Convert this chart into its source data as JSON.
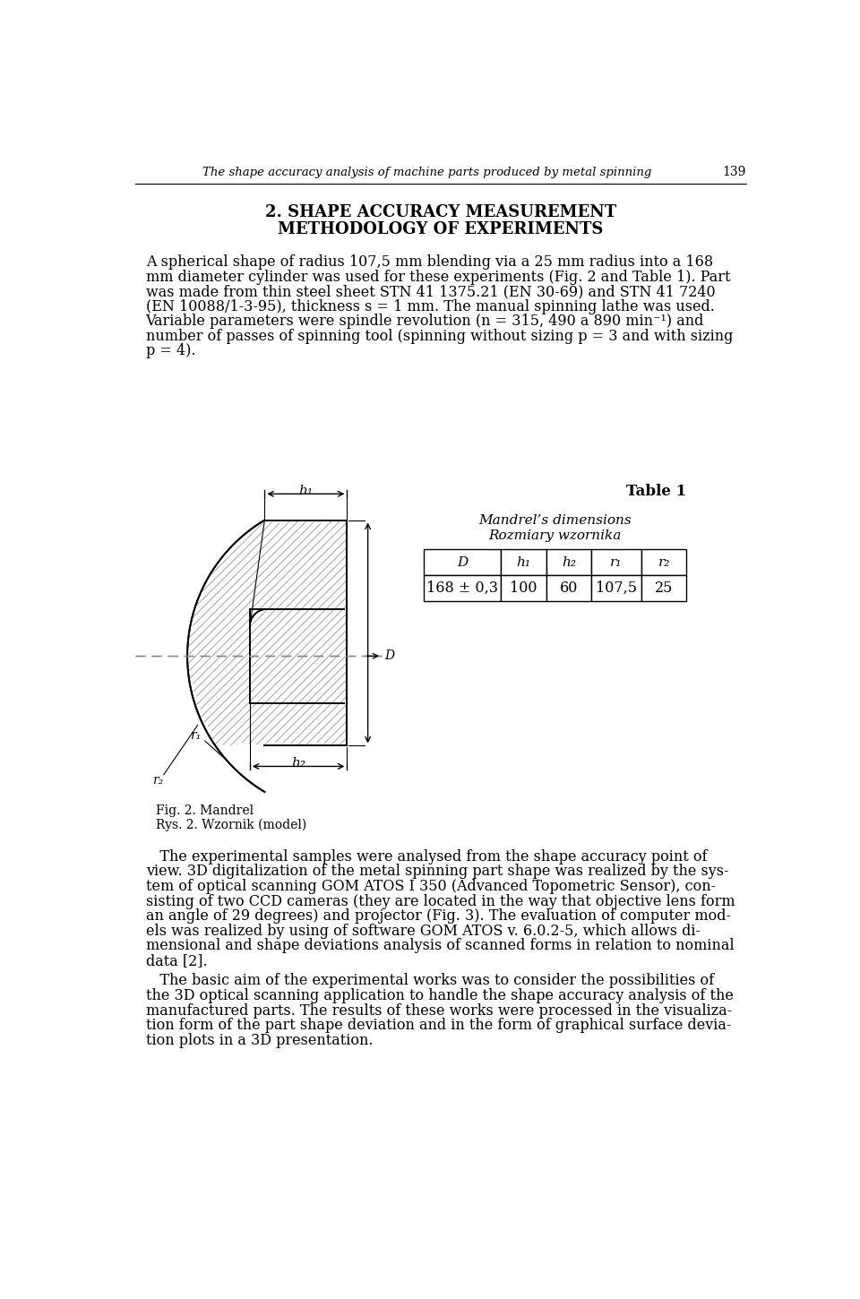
{
  "header_text": "The shape accuracy analysis of machine parts produced by metal spinning",
  "header_page": "139",
  "section_title_line1": "2. SHAPE ACCURACY MEASUREMENT",
  "section_title_line2": "METHODOLOGY OF EXPERIMENTS",
  "para1_lines": [
    "A spherical shape of radius 107,5 mm blending via a 25 mm radius into a 168",
    "mm diameter cylinder was used for these experiments (Fig. 2 and Table 1). Part",
    "was made from thin steel sheet STN 41 1375.21 (EN 30-69) and STN 41 7240",
    "(EN 10088/1-3-95), thickness s = 1 mm. The manual spinning lathe was used.",
    "Variable parameters were spindle revolution (n = 315, 490 a 890 min⁻¹) and",
    "number of passes of spinning tool (spinning without sizing p = 3 and with sizing",
    "p = 4)."
  ],
  "table_title1": "Mandrel’s dimensions",
  "table_title2": "Rozmiary wzornika",
  "table_label": "Table 1",
  "table_headers": [
    "D",
    "h₁",
    "h₂",
    "r₁",
    "r₂"
  ],
  "table_values": [
    "168 ± 0,3",
    "100",
    "60",
    "107,5",
    "25"
  ],
  "fig_caption1": "Fig. 2. Mandrel",
  "fig_caption2": "Rys. 2. Wzornik (model)",
  "para2_lines": [
    "   The experimental samples were analysed from the shape accuracy point of",
    "view. 3D digitalization of the metal spinning part shape was realized by the sys-",
    "tem of optical scanning GOM ATOS I 350 (Advanced Topometric Sensor), con-",
    "sisting of two CCD cameras (they are located in the way that objective lens form",
    "an angle of 29 degrees) and projector (Fig. 3). The evaluation of computer mod-",
    "els was realized by using of software GOM ATOS v. 6.0.2-5, which allows di-",
    "mensional and shape deviations analysis of scanned forms in relation to nominal",
    "data [2]."
  ],
  "para3_lines": [
    "   The basic aim of the experimental works was to consider the possibilities of",
    "the 3D optical scanning application to handle the shape accuracy analysis of the",
    "manufactured parts. The results of these works were processed in the visualiza-",
    "tion form of the part shape deviation and in the form of graphical surface devia-",
    "tion plots in a 3D presentation."
  ],
  "bg_color": "#ffffff"
}
